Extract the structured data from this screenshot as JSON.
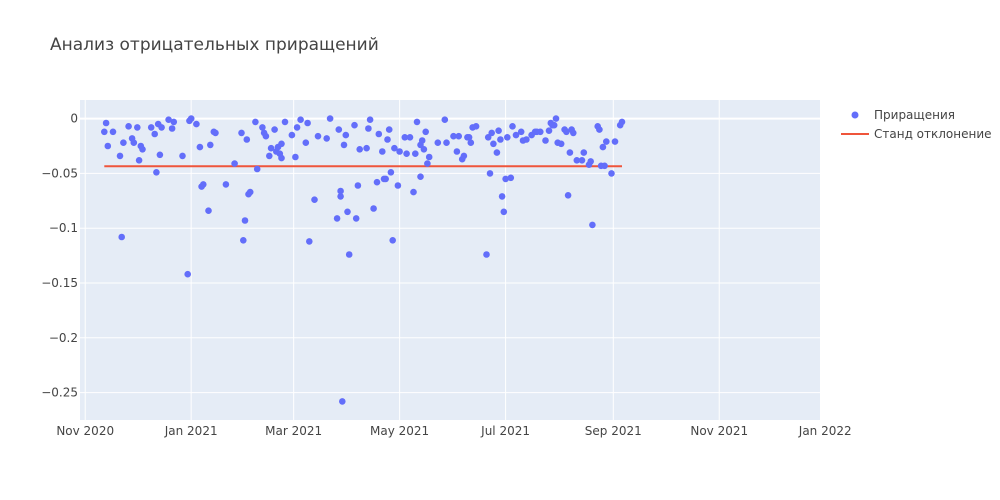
{
  "chart_data": {
    "type": "scatter",
    "title": "Анализ отрицательных приращений",
    "xlabel": "",
    "ylabel": "",
    "xlim": [
      "2020-10-29",
      "2021-12-29"
    ],
    "ylim": [
      -0.275,
      0.017
    ],
    "x_ticks": [
      {
        "date": "2020-11-01",
        "label": "Nov 2020"
      },
      {
        "date": "2021-01-01",
        "label": "Jan 2021"
      },
      {
        "date": "2021-03-01",
        "label": "Mar 2021"
      },
      {
        "date": "2021-05-01",
        "label": "May 2021"
      },
      {
        "date": "2021-07-01",
        "label": "Jul 2021"
      },
      {
        "date": "2021-09-01",
        "label": "Sep 2021"
      },
      {
        "date": "2021-11-01",
        "label": "Nov 2021"
      },
      {
        "date": "2022-01-01",
        "label": "Jan 2022"
      }
    ],
    "y_ticks": [
      {
        "value": 0,
        "label": "0"
      },
      {
        "value": -0.05,
        "label": "−0.05"
      },
      {
        "value": -0.1,
        "label": "−0.1"
      },
      {
        "value": -0.15,
        "label": "−0.15"
      },
      {
        "value": -0.2,
        "label": "−0.2"
      },
      {
        "value": -0.25,
        "label": "−0.25"
      }
    ],
    "grid": true,
    "legend_position": "top-right",
    "colors": {
      "plot_bg": "#e5ecf6",
      "grid": "#ffffff",
      "points": "#636efa",
      "line": "#ef553b"
    },
    "series": [
      {
        "name": "Приращения",
        "mode": "markers",
        "points": [
          [
            "2020-11-12",
            -0.012
          ],
          [
            "2020-11-13",
            -0.004
          ],
          [
            "2020-11-14",
            -0.025
          ],
          [
            "2020-11-17",
            -0.012
          ],
          [
            "2020-11-21",
            -0.034
          ],
          [
            "2020-11-22",
            -0.108
          ],
          [
            "2020-11-23",
            -0.022
          ],
          [
            "2020-11-26",
            -0.007
          ],
          [
            "2020-11-28",
            -0.018
          ],
          [
            "2020-11-29",
            -0.022
          ],
          [
            "2020-12-01",
            -0.008
          ],
          [
            "2020-12-02",
            -0.038
          ],
          [
            "2020-12-03",
            -0.025
          ],
          [
            "2020-12-04",
            -0.028
          ],
          [
            "2020-12-09",
            -0.008
          ],
          [
            "2020-12-11",
            -0.014
          ],
          [
            "2020-12-12",
            -0.049
          ],
          [
            "2020-12-13",
            -0.005
          ],
          [
            "2020-12-14",
            -0.033
          ],
          [
            "2020-12-15",
            -0.008
          ],
          [
            "2020-12-19",
            -0.001
          ],
          [
            "2020-12-21",
            -0.009
          ],
          [
            "2020-12-22",
            -0.003
          ],
          [
            "2020-12-27",
            -0.034
          ],
          [
            "2020-12-30",
            -0.142
          ],
          [
            "2020-12-31",
            -0.002
          ],
          [
            "2021-01-01",
            0.0
          ],
          [
            "2021-01-04",
            -0.005
          ],
          [
            "2021-01-06",
            -0.026
          ],
          [
            "2021-01-07",
            -0.062
          ],
          [
            "2021-01-08",
            -0.06
          ],
          [
            "2021-01-11",
            -0.084
          ],
          [
            "2021-01-12",
            -0.024
          ],
          [
            "2021-01-14",
            -0.012
          ],
          [
            "2021-01-15",
            -0.013
          ],
          [
            "2021-01-21",
            -0.06
          ],
          [
            "2021-01-26",
            -0.041
          ],
          [
            "2021-01-30",
            -0.013
          ],
          [
            "2021-01-31",
            -0.111
          ],
          [
            "2021-02-01",
            -0.093
          ],
          [
            "2021-02-02",
            -0.019
          ],
          [
            "2021-02-03",
            -0.069
          ],
          [
            "2021-02-04",
            -0.067
          ],
          [
            "2021-02-07",
            -0.003
          ],
          [
            "2021-02-08",
            -0.046
          ],
          [
            "2021-02-11",
            -0.008
          ],
          [
            "2021-02-12",
            -0.013
          ],
          [
            "2021-02-13",
            -0.016
          ],
          [
            "2021-02-15",
            -0.034
          ],
          [
            "2021-02-16",
            -0.027
          ],
          [
            "2021-02-18",
            -0.01
          ],
          [
            "2021-02-19",
            -0.03
          ],
          [
            "2021-02-20",
            -0.026
          ],
          [
            "2021-02-21",
            -0.032
          ],
          [
            "2021-02-22",
            -0.036
          ],
          [
            "2021-02-22",
            -0.023
          ],
          [
            "2021-02-24",
            -0.003
          ],
          [
            "2021-02-28",
            -0.015
          ],
          [
            "2021-03-02",
            -0.035
          ],
          [
            "2021-03-03",
            -0.008
          ],
          [
            "2021-03-05",
            -0.001
          ],
          [
            "2021-03-08",
            -0.022
          ],
          [
            "2021-03-09",
            -0.004
          ],
          [
            "2021-03-10",
            -0.112
          ],
          [
            "2021-03-13",
            -0.074
          ],
          [
            "2021-03-15",
            -0.016
          ],
          [
            "2021-03-20",
            -0.018
          ],
          [
            "2021-03-22",
            0.0
          ],
          [
            "2021-03-26",
            -0.091
          ],
          [
            "2021-03-27",
            -0.01
          ],
          [
            "2021-03-28",
            -0.071
          ],
          [
            "2021-03-28",
            -0.066
          ],
          [
            "2021-03-29",
            -0.258
          ],
          [
            "2021-03-30",
            -0.024
          ],
          [
            "2021-03-31",
            -0.015
          ],
          [
            "2021-04-01",
            -0.085
          ],
          [
            "2021-04-02",
            -0.124
          ],
          [
            "2021-04-05",
            -0.006
          ],
          [
            "2021-04-06",
            -0.091
          ],
          [
            "2021-04-07",
            -0.061
          ],
          [
            "2021-04-08",
            -0.028
          ],
          [
            "2021-04-12",
            -0.027
          ],
          [
            "2021-04-13",
            -0.009
          ],
          [
            "2021-04-14",
            -0.001
          ],
          [
            "2021-04-16",
            -0.082
          ],
          [
            "2021-04-18",
            -0.058
          ],
          [
            "2021-04-19",
            -0.014
          ],
          [
            "2021-04-21",
            -0.03
          ],
          [
            "2021-04-22",
            -0.055
          ],
          [
            "2021-04-23",
            -0.055
          ],
          [
            "2021-04-24",
            -0.019
          ],
          [
            "2021-04-25",
            -0.01
          ],
          [
            "2021-04-26",
            -0.049
          ],
          [
            "2021-04-27",
            -0.111
          ],
          [
            "2021-04-28",
            -0.027
          ],
          [
            "2021-04-30",
            -0.061
          ],
          [
            "2021-05-01",
            -0.03
          ],
          [
            "2021-05-04",
            -0.017
          ],
          [
            "2021-05-05",
            -0.032
          ],
          [
            "2021-05-07",
            -0.017
          ],
          [
            "2021-05-09",
            -0.067
          ],
          [
            "2021-05-10",
            -0.032
          ],
          [
            "2021-05-11",
            -0.003
          ],
          [
            "2021-05-13",
            -0.024
          ],
          [
            "2021-05-13",
            -0.053
          ],
          [
            "2021-05-14",
            -0.02
          ],
          [
            "2021-05-15",
            -0.028
          ],
          [
            "2021-05-16",
            -0.012
          ],
          [
            "2021-05-17",
            -0.041
          ],
          [
            "2021-05-18",
            -0.035
          ],
          [
            "2021-05-23",
            -0.022
          ],
          [
            "2021-05-27",
            -0.001
          ],
          [
            "2021-05-28",
            -0.022
          ],
          [
            "2021-06-01",
            -0.016
          ],
          [
            "2021-06-03",
            -0.03
          ],
          [
            "2021-06-04",
            -0.016
          ],
          [
            "2021-06-06",
            -0.037
          ],
          [
            "2021-06-07",
            -0.034
          ],
          [
            "2021-06-09",
            -0.017
          ],
          [
            "2021-06-10",
            -0.017
          ],
          [
            "2021-06-11",
            -0.022
          ],
          [
            "2021-06-12",
            -0.008
          ],
          [
            "2021-06-14",
            -0.007
          ],
          [
            "2021-06-20",
            -0.124
          ],
          [
            "2021-06-21",
            -0.017
          ],
          [
            "2021-06-22",
            -0.05
          ],
          [
            "2021-06-23",
            -0.013
          ],
          [
            "2021-06-24",
            -0.023
          ],
          [
            "2021-06-26",
            -0.031
          ],
          [
            "2021-06-27",
            -0.011
          ],
          [
            "2021-06-28",
            -0.019
          ],
          [
            "2021-06-29",
            -0.071
          ],
          [
            "2021-06-30",
            -0.085
          ],
          [
            "2021-07-01",
            -0.055
          ],
          [
            "2021-07-02",
            -0.017
          ],
          [
            "2021-07-04",
            -0.054
          ],
          [
            "2021-07-05",
            -0.007
          ],
          [
            "2021-07-07",
            -0.015
          ],
          [
            "2021-07-10",
            -0.012
          ],
          [
            "2021-07-11",
            -0.02
          ],
          [
            "2021-07-13",
            -0.019
          ],
          [
            "2021-07-16",
            -0.015
          ],
          [
            "2021-07-18",
            -0.012
          ],
          [
            "2021-07-19",
            -0.012
          ],
          [
            "2021-07-21",
            -0.012
          ],
          [
            "2021-07-24",
            -0.02
          ],
          [
            "2021-07-26",
            -0.011
          ],
          [
            "2021-07-27",
            -0.004
          ],
          [
            "2021-07-28",
            -0.006
          ],
          [
            "2021-07-29",
            -0.006
          ],
          [
            "2021-07-30",
            0.0
          ],
          [
            "2021-07-31",
            -0.022
          ],
          [
            "2021-08-02",
            -0.023
          ],
          [
            "2021-08-04",
            -0.01
          ],
          [
            "2021-08-05",
            -0.012
          ],
          [
            "2021-08-06",
            -0.07
          ],
          [
            "2021-08-07",
            -0.031
          ],
          [
            "2021-08-08",
            -0.01
          ],
          [
            "2021-08-09",
            -0.013
          ],
          [
            "2021-08-11",
            -0.038
          ],
          [
            "2021-08-14",
            -0.038
          ],
          [
            "2021-08-15",
            -0.031
          ],
          [
            "2021-08-18",
            -0.042
          ],
          [
            "2021-08-19",
            -0.039
          ],
          [
            "2021-08-20",
            -0.097
          ],
          [
            "2021-08-23",
            -0.007
          ],
          [
            "2021-08-24",
            -0.01
          ],
          [
            "2021-08-25",
            -0.043
          ],
          [
            "2021-08-26",
            -0.026
          ],
          [
            "2021-08-27",
            -0.043
          ],
          [
            "2021-08-28",
            -0.021
          ],
          [
            "2021-08-31",
            -0.05
          ],
          [
            "2021-09-02",
            -0.021
          ],
          [
            "2021-09-05",
            -0.006
          ],
          [
            "2021-09-06",
            -0.003
          ]
        ]
      },
      {
        "name": "Станд отклонение",
        "mode": "line",
        "points": [
          [
            "2020-11-12",
            -0.0435
          ],
          [
            "2021-09-06",
            -0.0435
          ]
        ]
      }
    ]
  }
}
